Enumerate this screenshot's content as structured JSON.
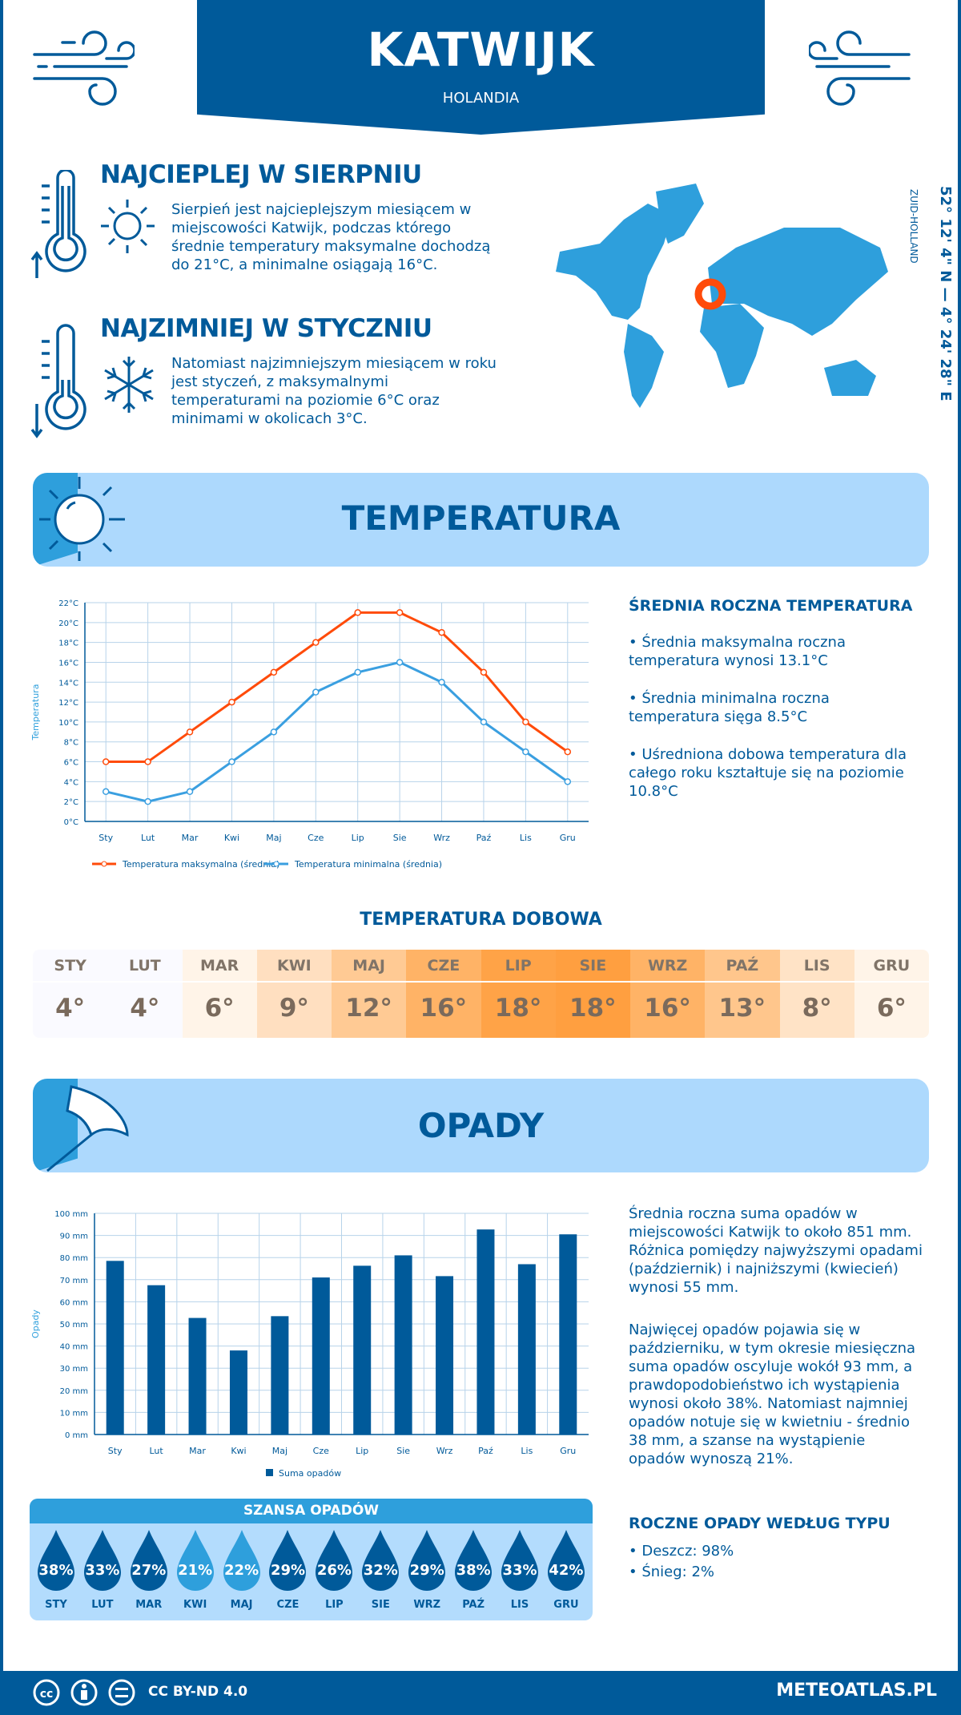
{
  "header": {
    "title": "KATWIJK",
    "country": "HOLANDIA"
  },
  "warmest": {
    "heading": "NAJCIEPLEJ W SIERPNIU",
    "text": "Sierpień jest najcieplejszym miesiącem w miejscowości Katwijk, podczas którego średnie temperatury maksymalne dochodzą do 21°C, a minimalne osiągają 16°C."
  },
  "coldest": {
    "heading": "NAJZIMNIEJ W STYCZNIU",
    "text": "Natomiast najzimniejszym miesiącem w roku jest styczeń, z maksymalnymi temperaturami na poziomie 6°C oraz minimami w okolicach 3°C."
  },
  "location": {
    "coords": "52° 12' 4\" N — 4° 24' 28\" E",
    "region": "ZUID-HOLLAND"
  },
  "temperature": {
    "banner_title": "TEMPERATURA",
    "summary_heading": "ŚREDNIA ROCZNA TEMPERATURA",
    "bullets": [
      "• Średnia maksymalna roczna temperatura wynosi 13.1°C",
      "• Średnia minimalna roczna temperatura sięga 8.5°C",
      "• Uśredniona dobowa temperatura dla całego roku kształtuje się na poziomie 10.8°C"
    ],
    "daily_heading": "TEMPERATURA DOBOWA",
    "daily": [
      {
        "m": "STY",
        "v": "4°",
        "bg": "#fafaff"
      },
      {
        "m": "LUT",
        "v": "4°",
        "bg": "#fafaff"
      },
      {
        "m": "MAR",
        "v": "6°",
        "bg": "#fff4e8"
      },
      {
        "m": "KWI",
        "v": "9°",
        "bg": "#ffdfc0"
      },
      {
        "m": "MAJ",
        "v": "12°",
        "bg": "#ffca94"
      },
      {
        "m": "CZE",
        "v": "16°",
        "bg": "#ffb366"
      },
      {
        "m": "LIP",
        "v": "18°",
        "bg": "#ffa347"
      },
      {
        "m": "SIE",
        "v": "18°",
        "bg": "#ff9f40"
      },
      {
        "m": "WRZ",
        "v": "16°",
        "bg": "#ffb366"
      },
      {
        "m": "PAŹ",
        "v": "13°",
        "bg": "#ffc68c"
      },
      {
        "m": "LIS",
        "v": "8°",
        "bg": "#ffe3c6"
      },
      {
        "m": "GRU",
        "v": "6°",
        "bg": "#fff4e8"
      }
    ]
  },
  "precipitation": {
    "banner_title": "OPADY",
    "text1": "Średnia roczna suma opadów w miejscowości Katwijk to około 851 mm. Różnica pomiędzy najwyższymi opadami (październik) i najniższymi (kwiecień) wynosi 55 mm.",
    "text2": "Najwięcej opadów pojawia się w październiku, w tym okresie miesięczna suma opadów oscyluje wokół 93 mm, a prawdopodobieństwo ich wystąpienia wynosi około 38%. Natomiast najmniej opadów notuje się w kwietniu - średnio 38 mm, a szanse na wystąpienie opadów wynoszą 21%.",
    "types_heading": "ROCZNE OPADY WEDŁUG TYPU",
    "types": [
      "• Deszcz: 98%",
      "• Śnieg: 2%"
    ],
    "chance_heading": "SZANSA OPADÓW",
    "chance": [
      {
        "m": "STY",
        "v": "38%",
        "light": false
      },
      {
        "m": "LUT",
        "v": "33%",
        "light": false
      },
      {
        "m": "MAR",
        "v": "27%",
        "light": false
      },
      {
        "m": "KWI",
        "v": "21%",
        "light": true
      },
      {
        "m": "MAJ",
        "v": "22%",
        "light": true
      },
      {
        "m": "CZE",
        "v": "29%",
        "light": false
      },
      {
        "m": "LIP",
        "v": "26%",
        "light": false
      },
      {
        "m": "SIE",
        "v": "32%",
        "light": false
      },
      {
        "m": "WRZ",
        "v": "29%",
        "light": false
      },
      {
        "m": "PAŹ",
        "v": "38%",
        "light": false
      },
      {
        "m": "LIS",
        "v": "33%",
        "light": false
      },
      {
        "m": "GRU",
        "v": "42%",
        "light": false
      }
    ]
  },
  "footer": {
    "license": "CC BY-ND 4.0",
    "site": "METEOATLAS.PL"
  },
  "colors": {
    "primary": "#005a9a",
    "accent": "#2e9fdc",
    "max_line": "#ff4b0a",
    "min_line": "#3a9fe0",
    "drop_dark": "#005a9a",
    "drop_light": "#2e9fdc"
  },
  "chart_data": [
    {
      "type": "line",
      "categories": [
        "Sty",
        "Lut",
        "Mar",
        "Kwi",
        "Maj",
        "Cze",
        "Lip",
        "Sie",
        "Wrz",
        "Paź",
        "Lis",
        "Gru"
      ],
      "ylabel": "Temperatura",
      "ylim": [
        0,
        22
      ],
      "yticks": [
        "0°C",
        "2°C",
        "4°C",
        "6°C",
        "8°C",
        "10°C",
        "12°C",
        "14°C",
        "16°C",
        "18°C",
        "20°C",
        "22°C"
      ],
      "grid": true,
      "legend": "bottom",
      "series": [
        {
          "name": "Temperatura maksymalna (średnia)",
          "values": [
            6,
            6,
            9,
            12,
            15,
            18,
            21,
            21,
            19,
            15,
            10,
            7
          ],
          "color": "#ff4b0a"
        },
        {
          "name": "Temperatura minimalna (średnia)",
          "values": [
            3,
            2,
            3,
            6,
            9,
            13,
            15,
            16,
            14,
            10,
            7,
            4
          ],
          "color": "#3a9fe0"
        }
      ]
    },
    {
      "type": "bar",
      "categories": [
        "Sty",
        "Lut",
        "Mar",
        "Kwi",
        "Maj",
        "Cze",
        "Lip",
        "Sie",
        "Wrz",
        "Paź",
        "Lis",
        "Gru"
      ],
      "ylabel": "Opady",
      "ylim": [
        0,
        100
      ],
      "yticks": [
        "0 mm",
        "10 mm",
        "20 mm",
        "30 mm",
        "40 mm",
        "50 mm",
        "60 mm",
        "70 mm",
        "80 mm",
        "90 mm",
        "100 mm"
      ],
      "grid": true,
      "legend": "bottom",
      "series": [
        {
          "name": "Suma opadów",
          "values": [
            78.5,
            67.5,
            52.7,
            38,
            53.5,
            71,
            76.3,
            81,
            71.6,
            92.7,
            77,
            90.5
          ],
          "color": "#005a9a"
        }
      ]
    }
  ]
}
